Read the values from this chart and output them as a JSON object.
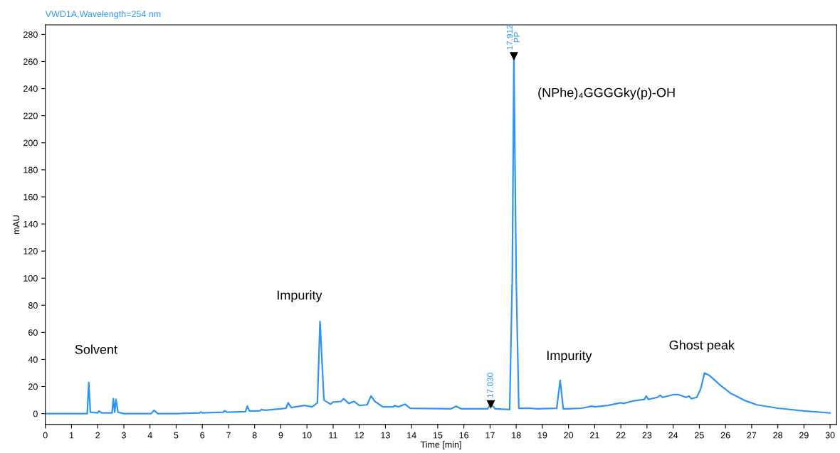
{
  "chart_data": {
    "type": "line",
    "title": "VWD1A,Wavelength=254 nm",
    "xlabel": "Time [min]",
    "ylabel": "mAU",
    "xlim": [
      0,
      30.25
    ],
    "xticks": [
      0,
      1,
      2,
      3,
      4,
      5,
      6,
      7,
      8,
      9,
      10,
      11,
      12,
      13,
      14,
      15,
      16,
      17,
      18,
      19,
      20,
      21,
      22,
      23,
      24,
      25,
      26,
      27,
      28,
      29,
      30
    ],
    "ylim": [
      -8,
      287
    ],
    "yticks": [
      0,
      20,
      40,
      60,
      80,
      100,
      120,
      140,
      160,
      180,
      200,
      220,
      240,
      260,
      280
    ],
    "grid": false,
    "legend": false,
    "series": [
      {
        "color": "#2f95f5",
        "marker": "none",
        "line_style": "solid",
        "x": [
          0,
          1.6,
          1.66,
          1.72,
          2.0,
          2.05,
          2.15,
          2.55,
          2.6,
          2.65,
          2.7,
          2.78,
          3.0,
          4.05,
          4.15,
          4.3,
          5,
          5.9,
          5.95,
          6.0,
          6.8,
          6.85,
          6.95,
          7.65,
          7.72,
          7.8,
          8.2,
          8.25,
          8.4,
          9.0,
          9.2,
          9.28,
          9.4,
          9.9,
          10.2,
          10.4,
          10.5,
          10.65,
          10.9,
          11.0,
          11.3,
          11.4,
          11.6,
          11.8,
          12.0,
          12.3,
          12.45,
          12.6,
          12.9,
          13.3,
          13.35,
          13.5,
          13.75,
          13.95,
          15.5,
          15.7,
          15.9,
          16.9,
          17.03,
          17.2,
          17.75,
          17.85,
          17.912,
          18.0,
          18.1,
          18.5,
          18.8,
          19.55,
          19.68,
          19.8,
          20.0,
          20.5,
          20.9,
          21.0,
          21.5,
          22.0,
          22.1,
          22.5,
          22.9,
          22.97,
          23.05,
          23.4,
          23.5,
          23.6,
          24.0,
          24.2,
          24.5,
          24.6,
          24.7,
          24.9,
          25.05,
          25.2,
          25.4,
          25.8,
          26.2,
          26.7,
          27.2,
          28,
          29,
          30
        ],
        "values": [
          0,
          0,
          23,
          1,
          0.5,
          2,
          0.5,
          0.5,
          11,
          1,
          10.5,
          1,
          0,
          0,
          2.5,
          0,
          0,
          0.5,
          1.2,
          0.5,
          1,
          2.2,
          1,
          1.5,
          5.5,
          2,
          2,
          3,
          2.5,
          3.5,
          4,
          8,
          4.5,
          6,
          5,
          8,
          68,
          10,
          7,
          8.5,
          9,
          11,
          7.5,
          9,
          6,
          6.5,
          13,
          9,
          5,
          5,
          6,
          5,
          7,
          4,
          3.5,
          5.5,
          3.5,
          3.5,
          7,
          3.5,
          3,
          100,
          264,
          100,
          4,
          4,
          3.5,
          4,
          24.5,
          3.5,
          3.5,
          4,
          5.5,
          5,
          6,
          8,
          7.5,
          9.5,
          10.5,
          13,
          10.5,
          12,
          13.5,
          12,
          14,
          14,
          12,
          13,
          11,
          12,
          18,
          30,
          28,
          21,
          15,
          10,
          6.5,
          4,
          2,
          0.5
        ]
      }
    ],
    "annotations": [
      {
        "text": "17.030",
        "x": 17.03,
        "y": 7
      },
      {
        "text": "17.912\nPP",
        "x": 17.912,
        "y": 264
      },
      "Solvent",
      "Impurity",
      "(NPhe)₄GGGGky(p)-OH",
      "Impurity",
      "Ghost peak"
    ]
  }
}
